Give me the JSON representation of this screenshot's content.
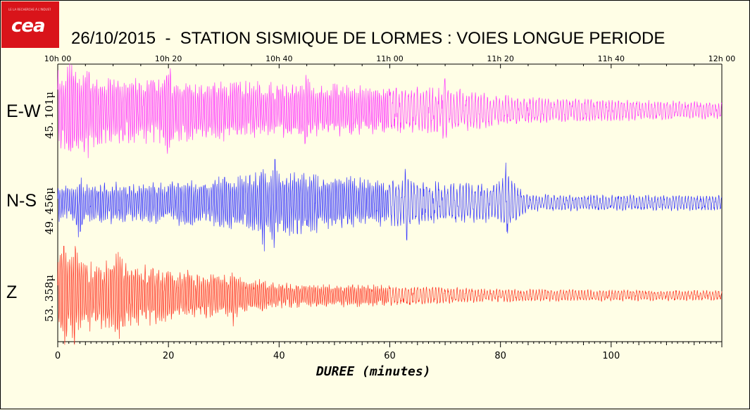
{
  "logo": {
    "tagline": "LE LA RECHERCHE À L'INDUSTRIE",
    "mark": "cea"
  },
  "chart_data": {
    "type": "line",
    "title": "26/10/2015  -  STATION SISMIQUE DE LORMES : VOIES LONGUE PERIODE",
    "xlabel": "DUREE (minutes)",
    "xlim": [
      0,
      120
    ],
    "x_ticks": [
      0,
      20,
      40,
      60,
      80,
      100
    ],
    "top_ticks": [
      "10h 00",
      "10h 20",
      "10h 40",
      "11h 00",
      "11h 20",
      "11h 40",
      "12h 00"
    ],
    "grid": false,
    "series": [
      {
        "name": "E-W",
        "scale_label": "45. 101μ",
        "color": "#ff33ff",
        "envelope": [
          [
            0,
            0.95
          ],
          [
            10,
            0.8
          ],
          [
            30,
            0.7
          ],
          [
            50,
            0.6
          ],
          [
            72,
            0.5
          ],
          [
            85,
            0.3
          ],
          [
            120,
            0.2
          ]
        ],
        "spikes": [
          [
            2,
            0.6
          ],
          [
            5,
            0.55
          ],
          [
            20,
            0.45
          ],
          [
            45,
            0.4
          ],
          [
            70,
            0.35
          ]
        ]
      },
      {
        "name": "N-S",
        "scale_label": "49. 456μ",
        "color": "#3333ff",
        "envelope": [
          [
            0,
            0.45
          ],
          [
            20,
            0.5
          ],
          [
            36,
            0.7
          ],
          [
            42,
            0.75
          ],
          [
            60,
            0.55
          ],
          [
            75,
            0.45
          ],
          [
            82,
            0.55
          ],
          [
            85,
            0.2
          ],
          [
            120,
            0.18
          ]
        ],
        "spikes": [
          [
            4,
            0.5
          ],
          [
            37,
            0.65
          ],
          [
            39,
            0.55
          ],
          [
            63,
            0.45
          ],
          [
            81,
            0.4
          ]
        ]
      },
      {
        "name": "Z",
        "scale_label": "53. 358μ",
        "color": "#ff3322",
        "envelope": [
          [
            0,
            0.9
          ],
          [
            12,
            0.75
          ],
          [
            30,
            0.5
          ],
          [
            40,
            0.3
          ],
          [
            60,
            0.25
          ],
          [
            80,
            0.15
          ],
          [
            120,
            0.12
          ]
        ],
        "spikes": [
          [
            1,
            0.55
          ],
          [
            3,
            0.55
          ],
          [
            11,
            0.6
          ],
          [
            32,
            0.4
          ]
        ]
      }
    ]
  }
}
